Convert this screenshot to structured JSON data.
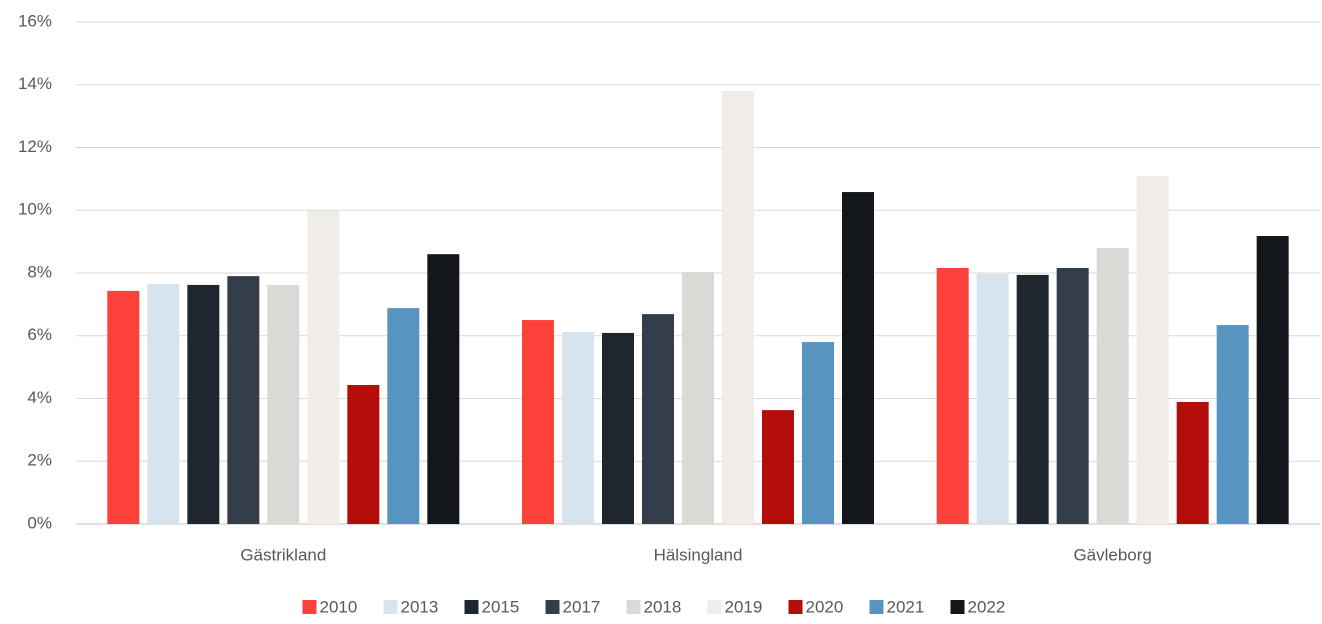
{
  "chart_data": {
    "type": "bar",
    "categories": [
      "Gästrikland",
      "Hälsingland",
      "Gävleborg"
    ],
    "series": [
      {
        "name": "2010",
        "color": "#fc403a",
        "values": [
          7.43,
          6.5,
          8.16
        ]
      },
      {
        "name": "2013",
        "color": "#d7e4ee",
        "values": [
          7.65,
          6.12,
          7.97
        ]
      },
      {
        "name": "2015",
        "color": "#20262e",
        "values": [
          7.62,
          6.09,
          7.94
        ]
      },
      {
        "name": "2017",
        "color": "#333e4a",
        "values": [
          7.9,
          6.69,
          8.16
        ]
      },
      {
        "name": "2018",
        "color": "#d9d9d6",
        "values": [
          7.62,
          8.03,
          8.8
        ]
      },
      {
        "name": "2019",
        "color": "#f0ece8",
        "values": [
          9.98,
          13.8,
          11.09
        ]
      },
      {
        "name": "2020",
        "color": "#b30e09",
        "values": [
          4.43,
          3.63,
          3.89
        ]
      },
      {
        "name": "2021",
        "color": "#5794c0",
        "values": [
          6.88,
          5.8,
          6.34
        ]
      },
      {
        "name": "2022",
        "color": "#13171c",
        "values": [
          8.6,
          10.58,
          9.18
        ]
      }
    ],
    "ylim": [
      0,
      16
    ],
    "yticks": [
      {
        "value": 0,
        "label": "0%"
      },
      {
        "value": 2,
        "label": "2%"
      },
      {
        "value": 4,
        "label": "4%"
      },
      {
        "value": 6,
        "label": "6%"
      },
      {
        "value": 8,
        "label": "8%"
      },
      {
        "value": 10,
        "label": "10%"
      },
      {
        "value": 12,
        "label": "12%"
      },
      {
        "value": 14,
        "label": "14%"
      },
      {
        "value": 16,
        "label": "16%"
      }
    ],
    "grid": true,
    "legend": "bottom"
  }
}
